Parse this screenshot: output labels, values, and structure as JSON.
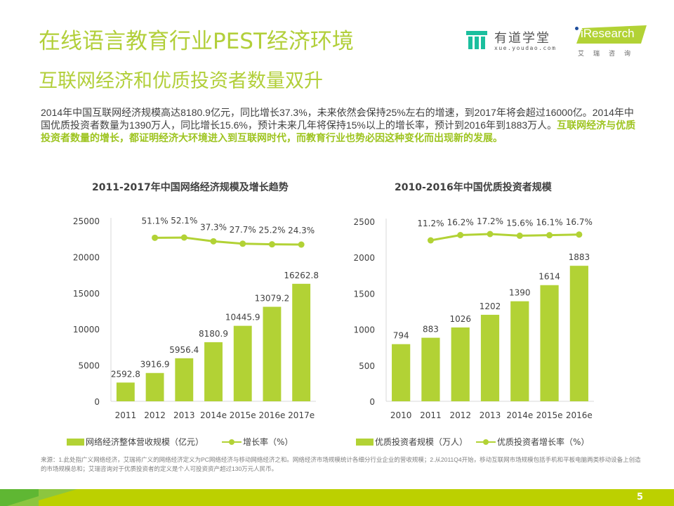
{
  "header": {
    "title": "在线语言教育行业PEST经济环境",
    "subtitle": "互联网经济和优质投资者数量双升"
  },
  "logos": {
    "youdao": {
      "name": "有道学堂",
      "url_text": "xue.youdao.com",
      "icon": "youdao-pillar-icon",
      "color": "#1bbf9e"
    },
    "iresearch": {
      "name": "iResearch",
      "sub": "艾瑞咨询",
      "color": "#b2d235"
    }
  },
  "intro": {
    "normal": "2014年中国互联网经济规模高达8180.9亿元，同比增长37.3%，未来依然会保持25%左右的增速，到2017年将会超过16000亿。2014年中国优质投资者数量为1390万人，同比增长15.6%，预计未来几年将保持15%以上的增长率，预计到2016年到1883万人。",
    "highlight": "互联网经济与优质投资者数量的增长，都证明经济大环境进入到互联网时代，而教育行业也势必因这种变化而出现新的发展。"
  },
  "colors": {
    "accent": "#b2cf3a",
    "bar": "#b2d235",
    "line": "#b2d235",
    "footer": "#bcd000",
    "text": "#404040"
  },
  "chart_data": [
    {
      "type": "bar",
      "title": "2011-2017年中国网络经济规模及增长趋势",
      "categories": [
        "2011",
        "2012",
        "2013",
        "2014e",
        "2015e",
        "2016e",
        "2017e"
      ],
      "series": [
        {
          "name": "网络经济整体营收规模（亿元）",
          "type": "bar",
          "values": [
            2592.8,
            3916.9,
            5956.4,
            8180.9,
            10445.9,
            13079.2,
            16262.8
          ],
          "labels": [
            "2592.8",
            "3916.9",
            "5956.4",
            "8180.9",
            "10445.9",
            "13079.2",
            "16262.8"
          ]
        },
        {
          "name": "增长率（%）",
          "type": "line",
          "categories": [
            "2012",
            "2013",
            "2014e",
            "2015e",
            "2016e",
            "2017e"
          ],
          "values": [
            51.1,
            52.1,
            37.3,
            27.7,
            25.2,
            24.3
          ],
          "labels": [
            "51.1%",
            "52.1%",
            "37.3%",
            "27.7%",
            "25.2%",
            "24.3%"
          ]
        }
      ],
      "yticks": [
        "0",
        "5000",
        "10000",
        "15000",
        "20000",
        "25000"
      ],
      "ylim": [
        0,
        25000
      ],
      "xlabel": "",
      "ylabel": "",
      "grid": false,
      "legend": "bottom",
      "legend_items": [
        "网络经济整体营收规模（亿元）",
        "增长率（%）"
      ]
    },
    {
      "type": "bar",
      "title": "2010-2016年中国优质投资者规模",
      "categories": [
        "2010",
        "2011",
        "2012",
        "2013",
        "2014e",
        "2015e",
        "2016e"
      ],
      "series": [
        {
          "name": "优质投资者规模（万人）",
          "type": "bar",
          "values": [
            794,
            883,
            1026,
            1202,
            1390,
            1614,
            1883
          ],
          "labels": [
            "794",
            "883",
            "1026",
            "1202",
            "1390",
            "1614",
            "1883"
          ]
        },
        {
          "name": "优质投资者增长率（%）",
          "type": "line",
          "categories": [
            "2011",
            "2012",
            "2013",
            "2014e",
            "2015e",
            "2016e"
          ],
          "values": [
            11.2,
            16.2,
            17.2,
            15.6,
            16.1,
            16.7
          ],
          "labels": [
            "11.2%",
            "16.2%",
            "17.2%",
            "15.6%",
            "16.1%",
            "16.7%"
          ]
        }
      ],
      "yticks": [
        "0",
        "500",
        "1000",
        "1500",
        "2000",
        "2500"
      ],
      "ylim": [
        0,
        2500
      ],
      "xlabel": "",
      "ylabel": "",
      "grid": false,
      "legend": "bottom",
      "legend_items": [
        "优质投资者规模（万人）",
        "优质投资者增长率（%）"
      ]
    }
  ],
  "source": "来源：1.此处指广义网络经济，艾瑞将广义的网络经济定义为PC网络经济与移动网络经济之和。网络经济市场规模统计各细分行业企业的营收规模；2.从2011Q4开始，移动互联网市场规模包括手机和平板电脑两类移动设备上创造的市场规模总和；艾瑞咨询对于优质投资者的定义是个人可投资资产超过130万元人民币。",
  "footer": {
    "page_number": "5"
  }
}
